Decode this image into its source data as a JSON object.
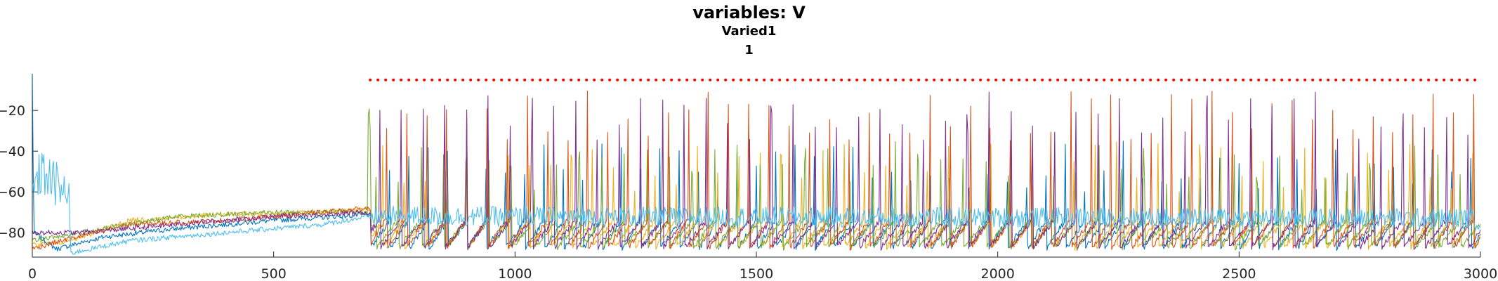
{
  "chart_data": {
    "type": "line",
    "title": "variables: V",
    "subtitle": "Varied1",
    "subtitle2": "1",
    "xlabel": "",
    "ylabel": "",
    "xlim": [
      0,
      3000
    ],
    "ylim": [
      -92,
      -2
    ],
    "xticks": [
      0,
      500,
      1000,
      1500,
      2000,
      2500,
      3000
    ],
    "yticks": [
      -80,
      -60,
      -40,
      -20
    ],
    "grid": false,
    "legend": "none",
    "reference_line": {
      "y": -5,
      "x_start": 700,
      "x_end": 2990,
      "color": "#ff0000",
      "style": "dotted"
    },
    "series_colors": [
      "#0072bd",
      "#d95319",
      "#edb120",
      "#7e2f8e",
      "#77ac30",
      "#4dbeee"
    ],
    "series": [
      {
        "color": "#0072bd",
        "values": [
          [
            0,
            -2
          ],
          [
            3,
            -80
          ],
          [
            50,
            -88
          ],
          [
            150,
            -82
          ],
          [
            300,
            -78
          ],
          [
            500,
            -74
          ],
          [
            700,
            -71
          ],
          [
            2960,
            -75
          ],
          [
            3000,
            -75
          ]
        ]
      },
      {
        "color": "#d95319",
        "values": [
          [
            0,
            -88
          ],
          [
            60,
            -84
          ],
          [
            200,
            -76
          ],
          [
            400,
            -74
          ],
          [
            600,
            -70
          ],
          [
            700,
            -68
          ],
          [
            720,
            -5
          ],
          [
            2960,
            -82
          ],
          [
            3000,
            -80
          ]
        ]
      },
      {
        "color": "#edb120",
        "values": [
          [
            0,
            -86
          ],
          [
            80,
            -84
          ],
          [
            200,
            -74
          ],
          [
            400,
            -71
          ],
          [
            600,
            -70
          ],
          [
            700,
            -68
          ],
          [
            2960,
            -78
          ],
          [
            3000,
            -78
          ]
        ]
      },
      {
        "color": "#7e2f8e",
        "values": [
          [
            0,
            -80
          ],
          [
            100,
            -80
          ],
          [
            300,
            -76
          ],
          [
            500,
            -72
          ],
          [
            700,
            -70
          ],
          [
            710,
            -10
          ],
          [
            2960,
            -84
          ],
          [
            3000,
            -82
          ]
        ]
      },
      {
        "color": "#77ac30",
        "values": [
          [
            0,
            -84
          ],
          [
            100,
            -80
          ],
          [
            300,
            -72
          ],
          [
            500,
            -70
          ],
          [
            695,
            -70
          ],
          [
            700,
            -20
          ],
          [
            750,
            -30
          ],
          [
            2960,
            -80
          ],
          [
            3000,
            -80
          ]
        ]
      },
      {
        "color": "#4dbeee",
        "values": [
          [
            0,
            -60
          ],
          [
            20,
            -50
          ],
          [
            75,
            -62
          ],
          [
            80,
            -90
          ],
          [
            200,
            -84
          ],
          [
            400,
            -80
          ],
          [
            600,
            -76
          ],
          [
            700,
            -72
          ],
          [
            2960,
            -73
          ],
          [
            3000,
            -74
          ]
        ]
      }
    ]
  }
}
